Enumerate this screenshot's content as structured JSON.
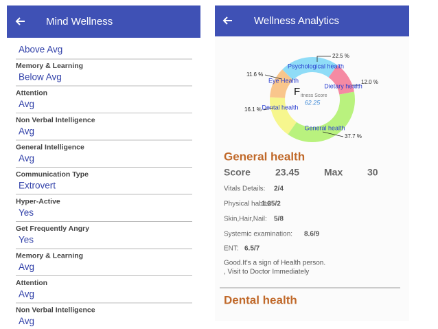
{
  "left": {
    "header": {
      "title": "Mind Wellness"
    },
    "first_value": "Above Avg",
    "items": [
      {
        "label": "Memory & Learning",
        "value": "Below Avg"
      },
      {
        "label": "Attention",
        "value": "Avg"
      },
      {
        "label": "Non Verbal Intelligence",
        "value": "Avg"
      },
      {
        "label": "General Intelligence",
        "value": "Avg"
      },
      {
        "label": "Communication Type",
        "value": "Extrovert"
      },
      {
        "label": "Hyper-Active",
        "value": "Yes"
      },
      {
        "label": "Get Frequently Angry",
        "value": "Yes"
      },
      {
        "label": "Memory & Learning",
        "value": "Avg"
      },
      {
        "label": "Attention",
        "value": "Avg"
      },
      {
        "label": "Non Verbal Intelligence",
        "value": "Avg"
      }
    ]
  },
  "right": {
    "header": {
      "title": "Wellness Analytics"
    },
    "donut": {
      "center_letter": "F",
      "center_label": "itness Score",
      "score": "62.25",
      "segments": [
        {
          "name": "Psychological health",
          "value": 22.5,
          "value_label": "22.5 %",
          "color": "#8fdcf7"
        },
        {
          "name": "Dietary health",
          "value": 12.0,
          "value_label": "12.0 %",
          "color": "#f58aa3"
        },
        {
          "name": "General health",
          "value": 37.7,
          "value_label": "37.7 %",
          "color": "#b9f27e"
        },
        {
          "name": "Dental health",
          "value": 16.1,
          "value_label": "16.1 %",
          "color": "#f6f68e"
        },
        {
          "name": "Eye Health",
          "value": 11.6,
          "value_label": "11.6 %",
          "color": "#f9c68c"
        }
      ]
    },
    "sections": [
      {
        "title": "General health",
        "score_label": "Score",
        "score": "23.45",
        "max_label": "Max",
        "max": "30",
        "details": [
          {
            "label": "Vitals Details:",
            "value": "2/4"
          },
          {
            "label": "Physical habits:",
            "value": "1.35/2"
          },
          {
            "label": "Skin,Hair,Nail:",
            "value": "5/8"
          },
          {
            "label": "Systemic examination:",
            "value": "8.6/9"
          },
          {
            "label": "ENT:",
            "value": "6.5/7"
          }
        ],
        "message": [
          "Good.It's a sign of Health person.",
          ", Visit to Doctor Immediately"
        ]
      },
      {
        "title": "Dental health"
      }
    ]
  }
}
